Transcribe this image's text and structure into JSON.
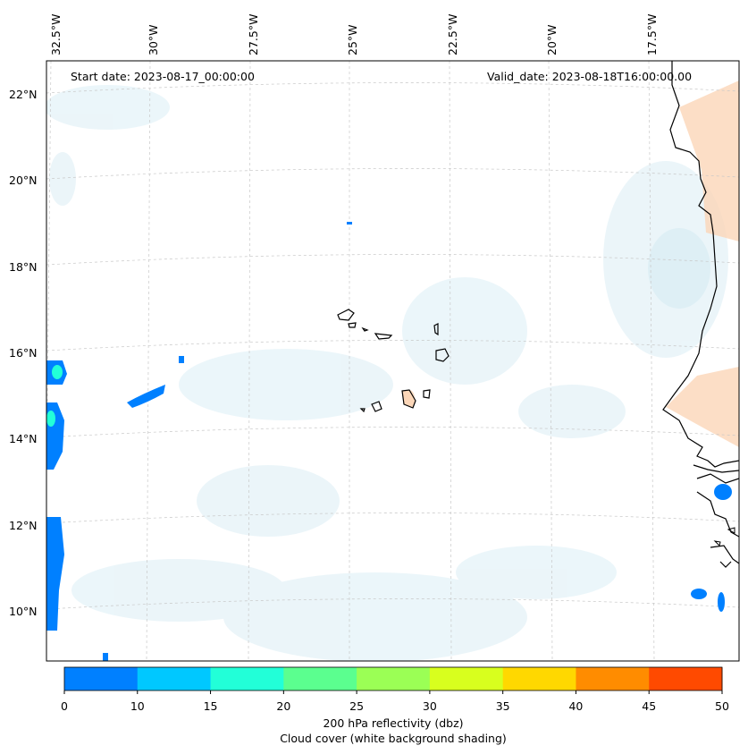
{
  "map": {
    "start_date": "Start date: 2023-08-17_00:00:00",
    "valid_date": "Valid_date: 2023-08-18T16:00:00.00",
    "longitude_labels": [
      "32.5°W",
      "30°W",
      "27.5°W",
      "25°W",
      "22.5°W",
      "20°W",
      "17.5°W"
    ],
    "latitude_labels": [
      "22°N",
      "20°N",
      "18°N",
      "16°N",
      "14°N",
      "12°N",
      "10°N"
    ],
    "grid": true
  },
  "colorbar": {
    "ticks": [
      "0",
      "10",
      "15",
      "20",
      "25",
      "30",
      "35",
      "40",
      "45",
      "50"
    ],
    "colors": [
      "#0080ff",
      "#00c8ff",
      "#22ffd8",
      "#5bff8f",
      "#9bff55",
      "#d8ff1e",
      "#ffd800",
      "#ff8c00",
      "#ff4a00"
    ],
    "label_line1": "200 hPa reflectivity (dbz)",
    "label_line2": "Cloud cover (white background shading)"
  },
  "icons": {
    "land_outline": "coastline",
    "reflectivity_cell": "radar-echo"
  }
}
